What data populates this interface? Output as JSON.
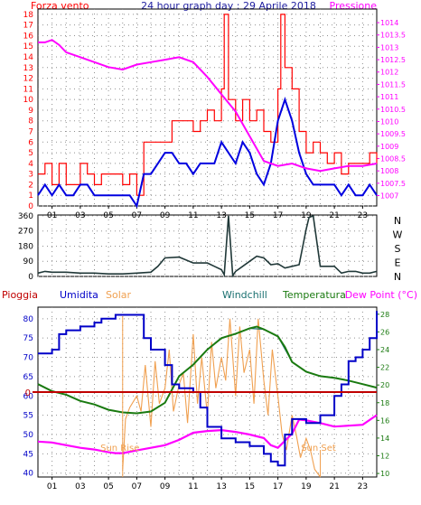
{
  "colors": {
    "wind": "#ff0000",
    "gust": "#0000e0",
    "pressure": "#ff00ff",
    "direction": "#203838",
    "umidita": "#0000c8",
    "solar": "#f0a050",
    "windchill": "#1a7070",
    "temperatura": "#1a7a10",
    "dewpoint": "#ff00ff",
    "pioggia": "#c00000",
    "title": "#2020a0",
    "frame": "#000000",
    "grid": "#909090",
    "sunlabel": "#f0a050"
  },
  "chart_data": [
    {
      "id": "wind",
      "type": "line",
      "title": "24 hour graph day : 29 Aprile 2018",
      "left_label": "Forza vento",
      "right_label": "Pressione",
      "x_ticks": [
        "01",
        "03",
        "05",
        "07",
        "09",
        "11",
        "13",
        "15",
        "17",
        "19",
        "21",
        "23"
      ],
      "y_left_ticks": [
        "0",
        "1",
        "2",
        "3",
        "4",
        "5",
        "6",
        "7",
        "8",
        "9",
        "10",
        "11",
        "12",
        "13",
        "14",
        "15",
        "16",
        "17",
        "18"
      ],
      "y_right_ticks": [
        "1007",
        "1007.5",
        "1008",
        "1008.5",
        "1009",
        "1009.5",
        "1010",
        "1010.5",
        "1011",
        "1011.5",
        "1012",
        "1012.5",
        "1013",
        "1013.5",
        "1014"
      ],
      "xlim": [
        0,
        24
      ],
      "ylim": [
        0,
        18.5
      ],
      "y2lim": [
        1006.58,
        1014.55
      ],
      "grid": true,
      "series": [
        {
          "key": "forza",
          "axis": "left",
          "x": [
            0,
            0.5,
            1,
            1.5,
            2,
            2.5,
            3,
            3.5,
            4,
            4.5,
            5,
            5.5,
            6,
            6.5,
            7,
            7.5,
            8,
            8.5,
            9,
            9.5,
            10,
            10.5,
            11,
            11.5,
            12,
            12.5,
            13,
            13.2,
            13.5,
            14,
            14.5,
            15,
            15.5,
            16,
            16.5,
            17,
            17.2,
            17.5,
            18,
            18.5,
            19,
            19.5,
            20,
            20.5,
            21,
            21.5,
            22,
            22.5,
            23,
            23.5,
            24
          ],
          "y": [
            3,
            4,
            2,
            4,
            2,
            2,
            4,
            3,
            2,
            3,
            3,
            3,
            2,
            3,
            1,
            6,
            6,
            6,
            6,
            8,
            8,
            8,
            7,
            8,
            9,
            8,
            11,
            18,
            10,
            8,
            10,
            8,
            9,
            7,
            6,
            11,
            18,
            13,
            11,
            7,
            5,
            6,
            5,
            4,
            5,
            3,
            4,
            4,
            4,
            5,
            4
          ]
        },
        {
          "key": "raffica",
          "axis": "left",
          "x": [
            0,
            0.5,
            1,
            1.5,
            2,
            2.5,
            3,
            3.5,
            4,
            4.5,
            5,
            5.5,
            6,
            6.5,
            7,
            7.5,
            8,
            8.5,
            9,
            9.5,
            10,
            10.5,
            11,
            11.5,
            12,
            12.5,
            13,
            13.5,
            14,
            14.5,
            15,
            15.5,
            16,
            16.5,
            17,
            17.5,
            18,
            18.5,
            19,
            19.5,
            20,
            20.5,
            21,
            21.5,
            22,
            22.5,
            23,
            23.5,
            24
          ],
          "y": [
            1,
            2,
            1,
            2,
            1,
            1,
            2,
            2,
            1,
            1,
            1,
            1,
            1,
            1,
            0,
            3,
            3,
            4,
            5,
            5,
            4,
            4,
            3,
            4,
            4,
            4,
            6,
            5,
            4,
            6,
            5,
            3,
            2,
            4,
            8,
            10,
            8,
            5,
            3,
            2,
            2,
            2,
            2,
            1,
            2,
            1,
            1,
            2,
            1
          ]
        },
        {
          "key": "pressione",
          "axis": "right",
          "x": [
            0,
            0.5,
            1,
            1.5,
            2,
            3,
            4,
            5,
            6,
            7,
            8,
            9,
            10,
            11,
            12,
            13,
            14,
            15,
            16,
            17,
            18,
            19,
            20,
            21,
            22,
            23,
            24
          ],
          "y": [
            1013.2,
            1013.2,
            1013.3,
            1013.1,
            1012.8,
            1012.6,
            1012.4,
            1012.2,
            1012.1,
            1012.3,
            1012.4,
            1012.5,
            1012.6,
            1012.4,
            1011.8,
            1011.1,
            1010.4,
            1009.4,
            1008.4,
            1008.2,
            1008.3,
            1008.1,
            1008.0,
            1008.1,
            1008.2,
            1008.2,
            1008.3
          ]
        }
      ]
    },
    {
      "id": "direction",
      "type": "line",
      "y_ticks": [
        "0",
        "90",
        "180",
        "270",
        "360"
      ],
      "compass": [
        "N",
        "W",
        "S",
        "E",
        "N"
      ],
      "xlim": [
        0,
        24
      ],
      "ylim": [
        0,
        365
      ],
      "grid": true,
      "series": [
        {
          "key": "direzione",
          "x": [
            0,
            0.5,
            1,
            2,
            3,
            4,
            5,
            6,
            7,
            8,
            8.5,
            9,
            10,
            11,
            12,
            12.5,
            13,
            13.2,
            13.5,
            13.8,
            14,
            14.5,
            15,
            15.5,
            16,
            16.5,
            17,
            17.5,
            18,
            18.5,
            19,
            19.2,
            19.5,
            20,
            21,
            21.5,
            22,
            22.5,
            23,
            23.5,
            24
          ],
          "y": [
            20,
            30,
            25,
            25,
            20,
            20,
            15,
            15,
            20,
            25,
            60,
            110,
            115,
            80,
            80,
            60,
            40,
            10,
            360,
            5,
            30,
            60,
            90,
            120,
            110,
            70,
            75,
            50,
            60,
            70,
            280,
            350,
            360,
            60,
            60,
            20,
            30,
            30,
            20,
            20,
            30
          ]
        }
      ]
    },
    {
      "id": "temp",
      "type": "line",
      "labels": {
        "pioggia": "Pioggia",
        "umidita": "Umidita",
        "solar": "Solar",
        "windchill": "Windchill",
        "temperatura": "Temperatura",
        "dewpoint": "Dew Point (°C)"
      },
      "y_left_ticks": [
        "40",
        "45",
        "50",
        "55",
        "60",
        "65",
        "70",
        "75",
        "80"
      ],
      "y_right_ticks": [
        "10",
        "12",
        "14",
        "16",
        "18",
        "20",
        "22",
        "24",
        "26",
        "28"
      ],
      "zero_label": "0",
      "sun_rise": "Sun Rise",
      "sun_set": "Sun Set",
      "sun_rise_x": 6.0,
      "sun_set_x": 20.0,
      "xlim": [
        0,
        24
      ],
      "ylim": [
        39,
        83
      ],
      "y2lim": [
        9.6,
        28.8
      ],
      "grid": true,
      "rain_value": 0,
      "series": [
        {
          "key": "umidita",
          "axis": "left",
          "x": [
            0,
            1,
            1.5,
            2,
            3,
            4,
            4.5,
            5,
            5.5,
            6,
            6.5,
            7,
            7.5,
            8,
            9,
            9.5,
            10,
            11,
            11.5,
            12,
            13,
            14,
            15,
            16,
            16.5,
            17,
            17.5,
            18,
            19,
            20,
            21,
            21.5,
            22,
            22.5,
            23,
            23.5,
            24
          ],
          "y": [
            71,
            72,
            76,
            77,
            78,
            79,
            80,
            80,
            81,
            81,
            81,
            81,
            75,
            72,
            68,
            63,
            62,
            61,
            57,
            52,
            49,
            48,
            47,
            45,
            43,
            42,
            50,
            54,
            53,
            55,
            60,
            63,
            69,
            70,
            72,
            75,
            82
          ]
        },
        {
          "key": "temperatura",
          "axis": "right",
          "x": [
            0,
            1,
            2,
            3,
            4,
            5,
            6,
            7,
            8,
            9,
            10,
            11,
            12,
            13,
            14,
            15,
            15.5,
            16,
            17,
            17.5,
            18,
            19,
            20,
            21,
            22,
            23,
            24
          ],
          "y": [
            20.1,
            19.3,
            18.9,
            18.2,
            17.8,
            17.2,
            16.9,
            16.8,
            17.0,
            18.0,
            21.0,
            22.3,
            24.0,
            25.3,
            25.8,
            26.4,
            26.6,
            26.3,
            25.5,
            24.3,
            22.6,
            21.5,
            21.0,
            20.8,
            20.5,
            20.1,
            19.7
          ]
        },
        {
          "key": "windchill",
          "axis": "right",
          "x": [
            0,
            1,
            2,
            3,
            4,
            5,
            6,
            7,
            8,
            9,
            10,
            11,
            12,
            13,
            14,
            15,
            16,
            17,
            18,
            19,
            20,
            21,
            22,
            23,
            24
          ],
          "y": [
            20.1,
            19.3,
            18.9,
            18.2,
            17.8,
            17.2,
            16.9,
            16.8,
            17.0,
            18.0,
            21.0,
            22.3,
            24.0,
            25.3,
            25.8,
            26.4,
            26.3,
            25.5,
            22.6,
            21.5,
            21.0,
            20.8,
            20.5,
            20.1,
            19.7
          ]
        },
        {
          "key": "dewpoint",
          "axis": "right",
          "x": [
            0,
            1,
            2,
            3,
            4,
            5,
            5.5,
            6,
            7,
            8,
            9,
            10,
            11,
            12,
            13,
            14,
            15,
            16,
            16.5,
            17,
            18,
            18.5,
            19,
            20,
            21,
            22,
            23,
            24
          ],
          "y": [
            13.6,
            13.5,
            13.2,
            12.9,
            12.7,
            12.4,
            12.3,
            12.3,
            12.6,
            12.9,
            13.2,
            13.8,
            14.6,
            14.8,
            14.9,
            14.7,
            14.4,
            14.0,
            13.2,
            12.9,
            14.5,
            16.1,
            16.0,
            15.7,
            15.3,
            15.4,
            15.5,
            16.6
          ]
        },
        {
          "key": "solar",
          "axis": "left",
          "x": [
            6,
            6.2,
            6.5,
            7,
            7.3,
            7.6,
            8,
            8.3,
            8.6,
            9,
            9.3,
            9.6,
            10,
            10.3,
            10.6,
            11,
            11.3,
            11.6,
            12,
            12.3,
            12.6,
            13,
            13.3,
            13.6,
            14,
            14.3,
            14.6,
            15,
            15.3,
            15.6,
            16,
            16.3,
            16.6,
            17,
            17.3,
            17.6,
            18,
            18.3,
            18.6,
            19,
            19.3,
            19.6,
            20
          ],
          "y": [
            41,
            54,
            57,
            60,
            56,
            68,
            52,
            69,
            58,
            62,
            72,
            56,
            63,
            66,
            53,
            76,
            58,
            70,
            55,
            74,
            62,
            70,
            64,
            80,
            60,
            78,
            66,
            72,
            58,
            80,
            64,
            55,
            72,
            60,
            50,
            46,
            55,
            50,
            44,
            49,
            46,
            41,
            39
          ]
        }
      ]
    }
  ]
}
